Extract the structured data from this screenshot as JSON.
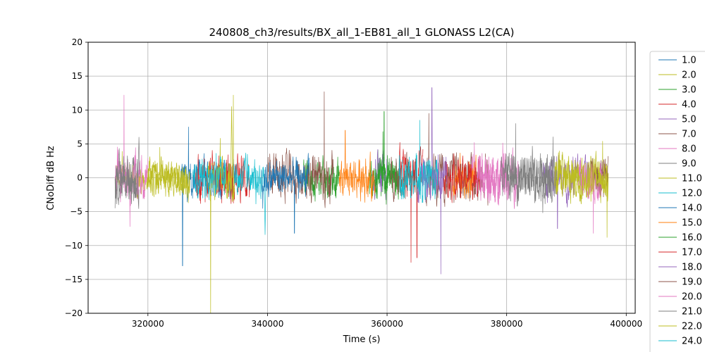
{
  "chart_data": {
    "type": "line",
    "title": "240808_ch3/results/BX_all_1-EB81_all_1 GLONASS L2(CA)",
    "xlabel": "Time (s)",
    "ylabel": "CNoDiff dB Hz",
    "xlim": [
      310000,
      401500
    ],
    "ylim": [
      -20,
      20
    ],
    "xticks": [
      320000,
      340000,
      360000,
      380000,
      400000
    ],
    "xtick_labels": [
      "320000",
      "340000",
      "360000",
      "380000",
      "400000"
    ],
    "yticks": [
      -20,
      -15,
      -10,
      -5,
      0,
      5,
      10,
      15,
      20
    ],
    "ytick_labels": [
      "−20",
      "−15",
      "−10",
      "−5",
      "0",
      "5",
      "10",
      "15",
      "20"
    ],
    "grid": true,
    "legend_position": "right-outside",
    "series": [
      {
        "name": "1.0",
        "color": "#1f77b4",
        "segments": [
          [
            325500,
            334500
          ]
        ],
        "amplitude": 2.2,
        "spikes": [
          [
            325800,
            -13
          ],
          [
            326800,
            7.5
          ]
        ]
      },
      {
        "name": "2.0",
        "color": "#bcbd22",
        "segments": [
          [
            314500,
            327000
          ]
        ],
        "amplitude": 1.6,
        "spikes": [
          [
            322000,
            4.5
          ]
        ]
      },
      {
        "name": "3.0",
        "color": "#2ca02c",
        "segments": [
          [
            346000,
            352000
          ],
          [
            357000,
            362000
          ]
        ],
        "amplitude": 2.2,
        "spikes": [
          [
            359500,
            9.8
          ]
        ]
      },
      {
        "name": "4.0",
        "color": "#d62728",
        "segments": [
          [
            328000,
            337000
          ],
          [
            362000,
            366000
          ]
        ],
        "amplitude": 2.5,
        "spikes": [
          [
            364000,
            -12.5
          ],
          [
            365000,
            -11.8
          ]
        ]
      },
      {
        "name": "5.0",
        "color": "#9467bd",
        "segments": [
          [
            357500,
            360000
          ],
          [
            386000,
            394000
          ]
        ],
        "amplitude": 2.3,
        "spikes": [
          [
            388500,
            -7.5
          ]
        ]
      },
      {
        "name": "7.0",
        "color": "#8c564b",
        "segments": [
          [
            340000,
            351000
          ],
          [
            366500,
            377000
          ]
        ],
        "amplitude": 2.5,
        "spikes": [
          [
            349500,
            12.7
          ],
          [
            367000,
            9.5
          ]
        ]
      },
      {
        "name": "8.0",
        "color": "#e377c2",
        "segments": [
          [
            314500,
            320000
          ],
          [
            374000,
            382000
          ]
        ],
        "amplitude": 2.6,
        "spikes": [
          [
            316000,
            12.2
          ],
          [
            317000,
            -7.2
          ]
        ]
      },
      {
        "name": "9.0",
        "color": "#7f7f7f",
        "segments": [
          [
            314500,
            318500
          ],
          [
            380000,
            388000
          ]
        ],
        "amplitude": 2.4,
        "spikes": [
          [
            381500,
            8.0
          ]
        ]
      },
      {
        "name": "11.0",
        "color": "#bcbd22",
        "segments": [
          [
            330000,
            334500
          ],
          [
            388000,
            397000
          ]
        ],
        "amplitude": 2.5,
        "spikes": [
          [
            330500,
            -20
          ],
          [
            334300,
            12.2
          ],
          [
            396800,
            -8.8
          ]
        ]
      },
      {
        "name": "12.0",
        "color": "#17becf",
        "segments": [
          [
            334500,
            339500
          ]
        ],
        "amplitude": 2.2,
        "spikes": [
          [
            339600,
            -8.4
          ]
        ]
      },
      {
        "name": "14.0",
        "color": "#1f77b4",
        "segments": [
          [
            339000,
            347000
          ]
        ],
        "amplitude": 2.0,
        "spikes": [
          [
            344500,
            -8.2
          ]
        ]
      },
      {
        "name": "15.0",
        "color": "#ff7f0e",
        "segments": [
          [
            352000,
            358000
          ],
          [
            371000,
            375000
          ]
        ],
        "amplitude": 2.2,
        "spikes": [
          [
            353000,
            7.0
          ]
        ]
      },
      {
        "name": "16.0",
        "color": "#2ca02c",
        "segments": [
          [
            358000,
            362000
          ]
        ],
        "amplitude": 2.0,
        "spikes": [
          [
            359300,
            6.8
          ]
        ]
      },
      {
        "name": "17.0",
        "color": "#d62728",
        "segments": [
          [
            369500,
            375500
          ]
        ],
        "amplitude": 2.0,
        "spikes": []
      },
      {
        "name": "18.0",
        "color": "#9467bd",
        "segments": [
          [
            365000,
            370000
          ]
        ],
        "amplitude": 2.6,
        "spikes": [
          [
            369000,
            -14.2
          ],
          [
            367500,
            13.3
          ]
        ]
      },
      {
        "name": "19.0",
        "color": "#8c564b",
        "segments": [
          [
            360500,
            365000
          ],
          [
            394000,
            397000
          ]
        ],
        "amplitude": 2.0,
        "spikes": []
      },
      {
        "name": "20.0",
        "color": "#e377c2",
        "segments": [
          [
            375000,
            380000
          ],
          [
            392000,
            396000
          ]
        ],
        "amplitude": 2.3,
        "spikes": [
          [
            394500,
            -8.2
          ]
        ]
      },
      {
        "name": "21.0",
        "color": "#7f7f7f",
        "segments": [
          [
            314500,
            318000
          ],
          [
            379000,
            388500
          ]
        ],
        "amplitude": 2.4,
        "spikes": [
          [
            318500,
            6.0
          ]
        ]
      },
      {
        "name": "22.0",
        "color": "#bcbd22",
        "segments": [
          [
            320000,
            327000
          ],
          [
            388000,
            397000
          ]
        ],
        "amplitude": 2.0,
        "spikes": [
          [
            334000,
            10.5
          ]
        ]
      },
      {
        "name": "24.0",
        "color": "#17becf",
        "segments": [
          [
            327500,
            333000
          ],
          [
            362000,
            368500
          ]
        ],
        "amplitude": 2.3,
        "spikes": [
          [
            365500,
            8.5
          ]
        ]
      }
    ]
  }
}
